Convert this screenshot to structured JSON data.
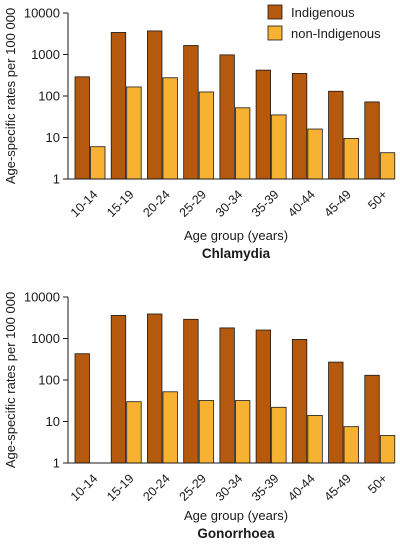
{
  "legend": {
    "position": "top-right",
    "entries": [
      {
        "label": "Indigenous",
        "color": "#B5590E"
      },
      {
        "label": "non-Indigenous",
        "color": "#F7B233"
      }
    ]
  },
  "chart_data": [
    {
      "type": "bar",
      "title": "Chlamydia",
      "xlabel": "Age group (years)",
      "ylabel": "Age-specific rates per 100 000",
      "yscale": "log",
      "ylim": [
        1,
        10000
      ],
      "yticks": [
        "1",
        "10",
        "100",
        "1000",
        "10000"
      ],
      "categories": [
        "10-14",
        "15-19",
        "20-24",
        "25-29",
        "30-34",
        "35-39",
        "40-44",
        "45-49",
        "50+"
      ],
      "series": [
        {
          "name": "Indigenous",
          "color": "#B5590E",
          "values": [
            290,
            3400,
            3700,
            1650,
            980,
            420,
            350,
            130,
            72
          ]
        },
        {
          "name": "non-Indigenous",
          "color": "#F7B233",
          "values": [
            6,
            165,
            275,
            125,
            52,
            35,
            16,
            9.5,
            4.3
          ]
        }
      ]
    },
    {
      "type": "bar",
      "title": "Gonorrhoea",
      "xlabel": "Age group (years)",
      "ylabel": "Age-specific rates per 100 000",
      "yscale": "log",
      "ylim": [
        1,
        10000
      ],
      "yticks": [
        "1",
        "10",
        "100",
        "1000",
        "10000"
      ],
      "categories": [
        "10-14",
        "15-19",
        "20-24",
        "25-29",
        "30-34",
        "35-39",
        "40-44",
        "45-49",
        "50+"
      ],
      "series": [
        {
          "name": "Indigenous",
          "color": "#B5590E",
          "values": [
            430,
            3600,
            3900,
            2900,
            1800,
            1600,
            950,
            270,
            130
          ]
        },
        {
          "name": "non-Indigenous",
          "color": "#F7B233",
          "values": [
            null,
            30,
            52,
            32,
            32,
            22,
            14,
            7.5,
            4.6
          ]
        }
      ]
    }
  ]
}
